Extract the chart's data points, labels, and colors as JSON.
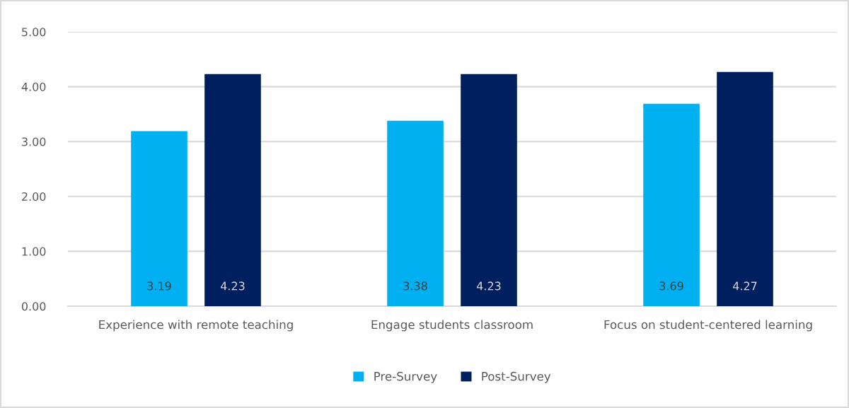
{
  "chart_data": {
    "type": "bar",
    "categories": [
      "Experience with remote teaching",
      "Engage students classroom",
      "Focus on student-centered learning"
    ],
    "series": [
      {
        "name": "Pre-Survey",
        "color": "#00b0f0",
        "values": [
          3.19,
          3.38,
          3.69
        ]
      },
      {
        "name": "Post-Survey",
        "color": "#001f5f",
        "values": [
          4.23,
          4.23,
          4.27
        ]
      }
    ],
    "ylim": [
      0,
      5
    ],
    "yticks": [
      {
        "value": 0,
        "label": "0.00"
      },
      {
        "value": 1,
        "label": "1.00"
      },
      {
        "value": 2,
        "label": "2.00"
      },
      {
        "value": 3,
        "label": "3.00"
      },
      {
        "value": 4,
        "label": "4.00"
      },
      {
        "value": 5,
        "label": "5.00"
      }
    ],
    "grid": "y",
    "legend": "bottom",
    "data_labels": true
  }
}
